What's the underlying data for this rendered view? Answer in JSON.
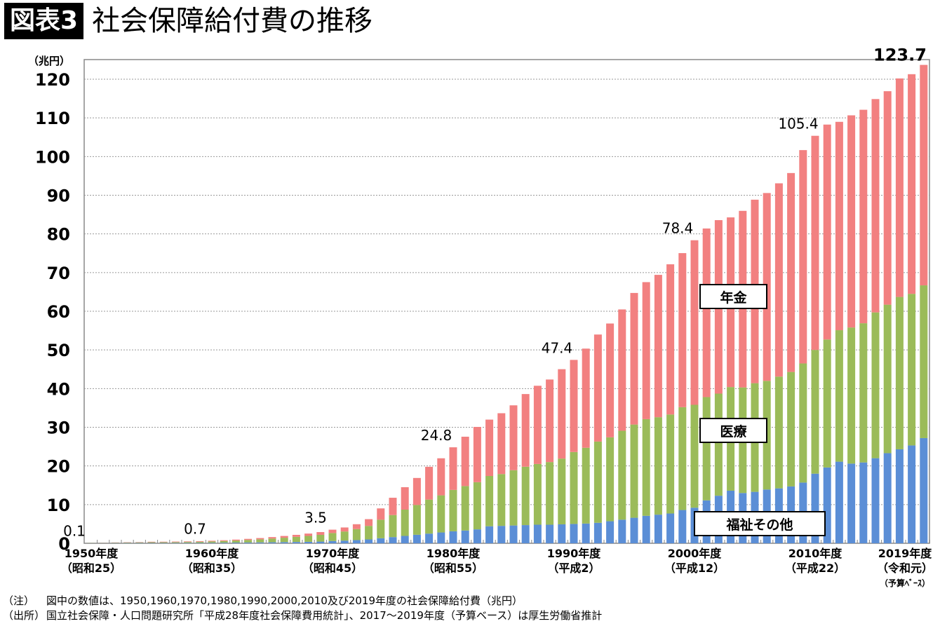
{
  "header": {
    "figure_number": "図表3",
    "title": "社会保障給付費の推移"
  },
  "chart_data": {
    "type": "bar",
    "stacked": true,
    "title": "社会保障給付費の推移",
    "ylabel": "（兆円）",
    "ylim": [
      0,
      125
    ],
    "yticks": [
      0,
      10,
      20,
      30,
      40,
      50,
      60,
      70,
      80,
      90,
      100,
      110,
      120
    ],
    "grid": true,
    "x": [
      1950,
      1951,
      1952,
      1953,
      1954,
      1955,
      1956,
      1957,
      1958,
      1959,
      1960,
      1961,
      1962,
      1963,
      1964,
      1965,
      1966,
      1967,
      1968,
      1969,
      1970,
      1971,
      1972,
      1973,
      1974,
      1975,
      1976,
      1977,
      1978,
      1979,
      1980,
      1981,
      1982,
      1983,
      1984,
      1985,
      1986,
      1987,
      1988,
      1989,
      1990,
      1991,
      1992,
      1993,
      1994,
      1995,
      1996,
      1997,
      1998,
      1999,
      2000,
      2001,
      2002,
      2003,
      2004,
      2005,
      2006,
      2007,
      2008,
      2009,
      2010,
      2011,
      2012,
      2013,
      2014,
      2015,
      2016,
      2017,
      2018,
      2019
    ],
    "xtick_labels": [
      {
        "year": 1950,
        "line1": "1950年度",
        "line2": "（昭和25）"
      },
      {
        "year": 1960,
        "line1": "1960年度",
        "line2": "（昭和35）"
      },
      {
        "year": 1970,
        "line1": "1970年度",
        "line2": "（昭和45）"
      },
      {
        "year": 1980,
        "line1": "1980年度",
        "line2": "（昭和55）"
      },
      {
        "year": 1990,
        "line1": "1990年度",
        "line2": "（平成2）"
      },
      {
        "year": 2000,
        "line1": "2000年度",
        "line2": "（平成12）"
      },
      {
        "year": 2010,
        "line1": "2010年度",
        "line2": "（平成22）"
      },
      {
        "year": 2019,
        "line1": "2019年度",
        "line2": "（令和元）",
        "line3": "（予算ﾍﾞｰｽ）"
      }
    ],
    "series": [
      {
        "name": "福祉その他",
        "color": "#5B8ED6",
        "values": [
          0.05,
          0.06,
          0.07,
          0.08,
          0.09,
          0.1,
          0.1,
          0.1,
          0.11,
          0.12,
          0.13,
          0.15,
          0.17,
          0.2,
          0.23,
          0.26,
          0.3,
          0.34,
          0.38,
          0.44,
          0.59,
          0.68,
          0.82,
          1.0,
          1.3,
          1.6,
          1.9,
          2.2,
          2.5,
          2.8,
          3.1,
          3.3,
          3.6,
          4.4,
          4.5,
          4.6,
          4.7,
          4.8,
          4.8,
          4.9,
          5.0,
          5.1,
          5.3,
          5.7,
          6.1,
          6.6,
          7.1,
          7.4,
          7.7,
          8.6,
          9.2,
          11.1,
          12.3,
          13.6,
          13.0,
          13.3,
          13.9,
          14.2,
          14.7,
          15.7,
          18.0,
          19.6,
          21.1,
          20.6,
          20.9,
          22.0,
          23.3,
          24.3,
          25.3,
          27.2
        ]
      },
      {
        "name": "医療",
        "color": "#9BBB59",
        "values": [
          0.05,
          0.06,
          0.09,
          0.12,
          0.14,
          0.17,
          0.18,
          0.2,
          0.23,
          0.26,
          0.35,
          0.44,
          0.54,
          0.66,
          0.79,
          0.97,
          1.13,
          1.32,
          1.52,
          1.74,
          2.06,
          2.37,
          2.86,
          3.5,
          4.8,
          5.7,
          6.8,
          7.7,
          8.8,
          9.6,
          10.7,
          11.5,
          12.2,
          13.0,
          13.4,
          14.3,
          15.1,
          15.7,
          16.2,
          17.0,
          18.6,
          19.6,
          21.0,
          21.7,
          23.0,
          24.1,
          25.0,
          25.2,
          25.6,
          26.6,
          26.6,
          26.7,
          26.4,
          26.8,
          27.3,
          28.1,
          28.1,
          28.9,
          29.6,
          30.8,
          32.0,
          33.1,
          34.0,
          35.2,
          36.0,
          37.7,
          38.4,
          39.4,
          39.2,
          39.5
        ]
      },
      {
        "name": "年金",
        "color": "#F28080",
        "values": [
          0.02,
          0.04,
          0.06,
          0.08,
          0.09,
          0.12,
          0.12,
          0.14,
          0.15,
          0.16,
          0.17,
          0.2,
          0.24,
          0.28,
          0.33,
          0.37,
          0.46,
          0.52,
          0.61,
          0.72,
          0.87,
          1.04,
          1.25,
          1.74,
          2.92,
          4.47,
          5.8,
          6.99,
          8.48,
          9.58,
          11.02,
          12.76,
          14.29,
          14.58,
          15.73,
          16.77,
          18.79,
          20.23,
          21.35,
          23.12,
          23.82,
          25.64,
          27.68,
          29.43,
          31.37,
          34.03,
          35.43,
          36.81,
          38.84,
          39.83,
          42.56,
          43.6,
          44.86,
          43.87,
          45.66,
          47.45,
          48.57,
          49.98,
          51.44,
          55.17,
          55.37,
          55.57,
          53.88,
          54.86,
          55.2,
          55.17,
          55.2,
          56.5,
          56.8,
          57.0
        ]
      }
    ],
    "data_labels": [
      {
        "year": 1950,
        "text": "0.1"
      },
      {
        "year": 1960,
        "text": "0.7"
      },
      {
        "year": 1970,
        "text": "3.5"
      },
      {
        "year": 1980,
        "text": "24.8"
      },
      {
        "year": 1990,
        "text": "47.4"
      },
      {
        "year": 2000,
        "text": "78.4"
      },
      {
        "year": 2010,
        "text": "105.4"
      },
      {
        "year": 2019,
        "text": "123.7"
      }
    ]
  },
  "notes": [
    {
      "key": "（注）",
      "text": "図中の数値は、1950,1960,1970,1980,1990,2000,2010及び2019年度の社会保障給付費（兆円）"
    },
    {
      "key": "（出所）",
      "text": "国立社会保障・人口問題研究所「平成28年度社会保障費用統計」、2017～2019年度（予算ベース）は厚生労働省推計"
    }
  ]
}
